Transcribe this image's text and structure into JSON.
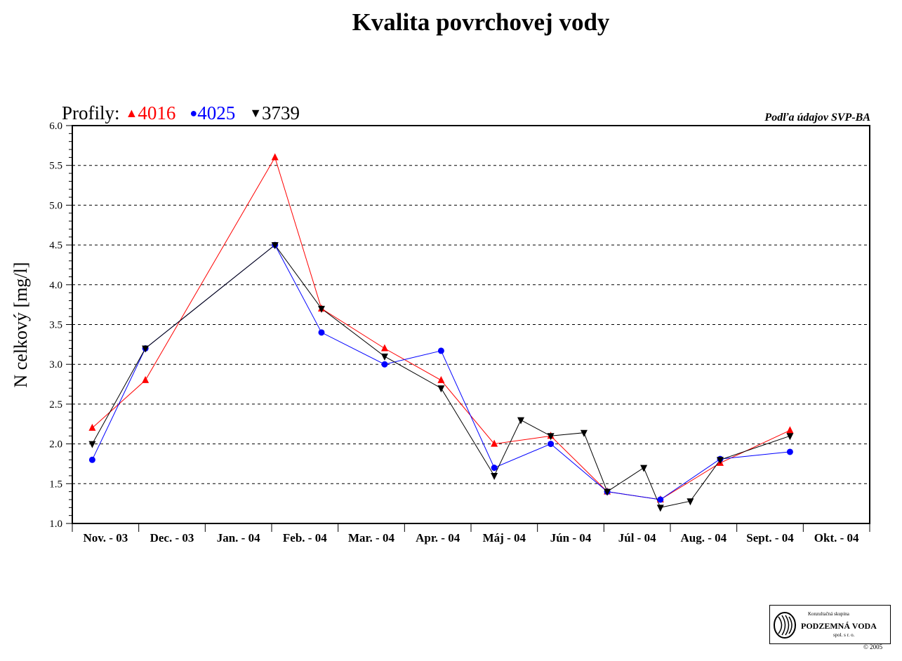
{
  "chart_data": {
    "type": "line",
    "title": "Kvalita povrchovej vody",
    "ylabel": "N celkový [mg/l]",
    "xlabel": "",
    "source_note": "Podľa údajov SVP-BA",
    "legend_prefix": "Profily:",
    "ylim": [
      1.0,
      6.0
    ],
    "yticks": [
      "1.0",
      "1.5",
      "2.0",
      "2.5",
      "3.0",
      "3.5",
      "4.0",
      "4.5",
      "5.0",
      "5.5",
      "6.0"
    ],
    "grid": "horizontal dashed",
    "legend_placement": "top-left",
    "x_range": [
      0,
      12
    ],
    "categories": [
      "Nov. - 03",
      "Dec. - 03",
      "Jan. - 04",
      "Feb. - 04",
      "Mar. - 04",
      "Apr. - 04",
      "Máj - 04",
      "Jún - 04",
      "Júl - 04",
      "Aug. - 04",
      "Sept. - 04",
      "Okt. - 04"
    ],
    "series": [
      {
        "name": "4016",
        "color": "#ff0000",
        "marker": "triangle-up",
        "x": [
          0.3,
          1.1,
          3.05,
          3.75,
          4.7,
          5.55,
          6.35,
          7.2,
          8.05,
          8.85,
          9.75,
          10.8
        ],
        "y": [
          2.2,
          2.8,
          5.6,
          3.7,
          3.2,
          2.8,
          2.0,
          2.1,
          1.4,
          1.3,
          1.76,
          2.17
        ]
      },
      {
        "name": "4025",
        "color": "#0000ff",
        "marker": "circle",
        "x": [
          0.3,
          1.1,
          3.05,
          3.75,
          4.7,
          5.55,
          6.35,
          7.2,
          8.05,
          8.85,
          9.75,
          10.8
        ],
        "y": [
          1.8,
          3.2,
          4.5,
          3.4,
          3.0,
          3.17,
          1.7,
          2.0,
          1.4,
          1.3,
          1.81,
          1.9
        ]
      },
      {
        "name": "3739",
        "color": "#000000",
        "marker": "triangle-down",
        "x": [
          0.3,
          1.1,
          3.05,
          3.75,
          4.7,
          5.55,
          6.35,
          6.75,
          7.2,
          7.7,
          8.05,
          8.6,
          8.85,
          9.3,
          9.75,
          10.8
        ],
        "y": [
          2.0,
          3.2,
          4.5,
          3.7,
          3.1,
          2.7,
          1.6,
          2.3,
          2.1,
          2.14,
          1.4,
          1.7,
          1.2,
          1.28,
          1.8,
          2.1
        ]
      }
    ]
  },
  "logo": {
    "line1": "Konzultačná skupina",
    "line2": "PODZEMNÁ VODA",
    "line3": "spol. s r. o.",
    "copyright": "© 2005"
  }
}
